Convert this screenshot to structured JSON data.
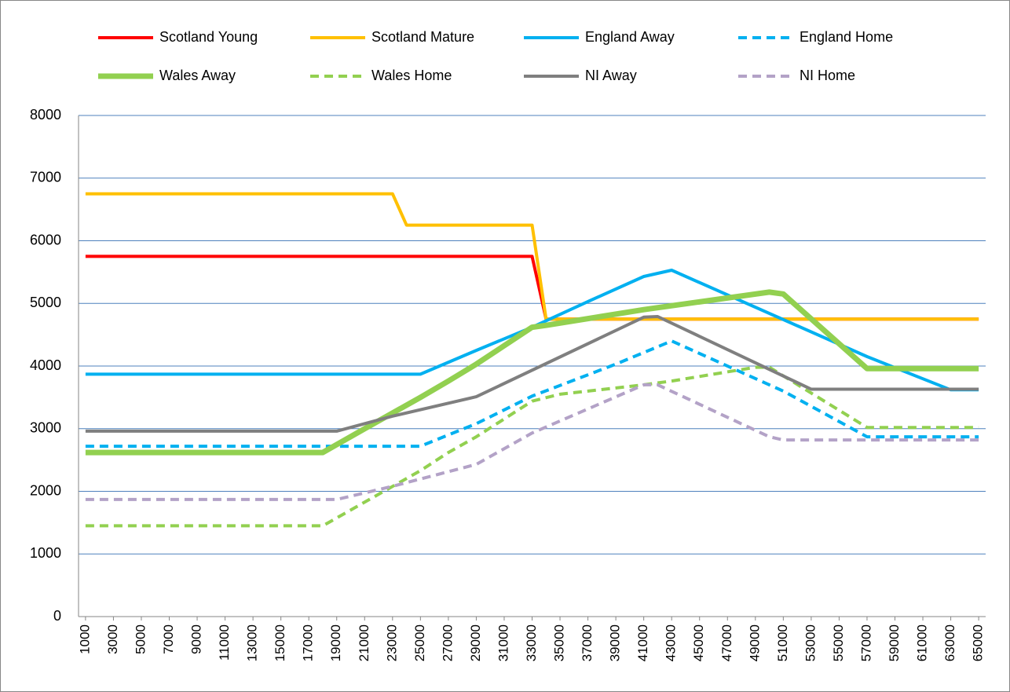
{
  "chart_data": {
    "type": "line",
    "xlim": [
      500,
      65500
    ],
    "xticks": [
      1000,
      3000,
      5000,
      7000,
      9000,
      11000,
      13000,
      15000,
      17000,
      19000,
      21000,
      23000,
      25000,
      27000,
      29000,
      31000,
      33000,
      35000,
      37000,
      39000,
      41000,
      43000,
      45000,
      47000,
      49000,
      51000,
      53000,
      55000,
      57000,
      59000,
      61000,
      63000,
      65000
    ],
    "ylim": [
      0,
      8000
    ],
    "yticks": [
      0,
      1000,
      2000,
      3000,
      4000,
      5000,
      6000,
      7000,
      8000
    ],
    "grid": true,
    "series": [
      {
        "name": "Scotland Young",
        "color": "#ff0000",
        "dashed": false,
        "width": 4,
        "x": [
          1000,
          33000,
          34000,
          65000
        ],
        "values": [
          5750,
          5750,
          4750,
          4750
        ]
      },
      {
        "name": "Scotland Mature",
        "color": "#ffc000",
        "dashed": false,
        "width": 4,
        "x": [
          1000,
          23000,
          24000,
          33000,
          34000,
          65000
        ],
        "values": [
          6750,
          6750,
          6250,
          6250,
          4750,
          4750
        ]
      },
      {
        "name": "England Away",
        "color": "#00b0f0",
        "dashed": false,
        "width": 4,
        "x": [
          1000,
          25000,
          29000,
          33000,
          37000,
          41000,
          43000,
          57000,
          63000,
          65000
        ],
        "values": [
          3870,
          3870,
          4250,
          4620,
          5030,
          5430,
          5530,
          4150,
          3620,
          3620
        ]
      },
      {
        "name": "England Home",
        "color": "#00b0f0",
        "dashed": true,
        "width": 4,
        "x": [
          1000,
          25000,
          29000,
          33000,
          39000,
          43000,
          51000,
          57000,
          65000
        ],
        "values": [
          2720,
          2720,
          3080,
          3520,
          4030,
          4400,
          3600,
          2870,
          2870
        ]
      },
      {
        "name": "Wales Away",
        "color": "#92d050",
        "dashed": false,
        "width": 7,
        "x": [
          1000,
          18000,
          21000,
          25000,
          27000,
          29000,
          33000,
          34000,
          41000,
          50000,
          51000,
          57000,
          65000
        ],
        "values": [
          2620,
          2620,
          3000,
          3500,
          3760,
          4030,
          4620,
          4650,
          4900,
          5180,
          5150,
          3960,
          3960
        ]
      },
      {
        "name": "Wales Home",
        "color": "#92d050",
        "dashed": true,
        "width": 4,
        "x": [
          1000,
          18000,
          25000,
          27000,
          29000,
          33000,
          35000,
          41000,
          43000,
          49000,
          50000,
          57000,
          65000
        ],
        "values": [
          1450,
          1450,
          2330,
          2620,
          2870,
          3440,
          3550,
          3700,
          3760,
          3980,
          3980,
          3020,
          3020
        ]
      },
      {
        "name": "NI Away",
        "color": "#7f7f7f",
        "dashed": false,
        "width": 4,
        "x": [
          1000,
          19000,
          23000,
          29000,
          41000,
          42000,
          53000,
          65000
        ],
        "values": [
          2960,
          2960,
          3200,
          3510,
          4780,
          4790,
          3630,
          3630
        ]
      },
      {
        "name": "NI Home",
        "color": "#b3a2c7",
        "dashed": true,
        "width": 4,
        "x": [
          1000,
          19000,
          23000,
          29000,
          33000,
          41000,
          42000,
          50000,
          51000,
          65000
        ],
        "values": [
          1870,
          1870,
          2080,
          2430,
          2930,
          3700,
          3700,
          2870,
          2820,
          2820
        ]
      }
    ]
  }
}
